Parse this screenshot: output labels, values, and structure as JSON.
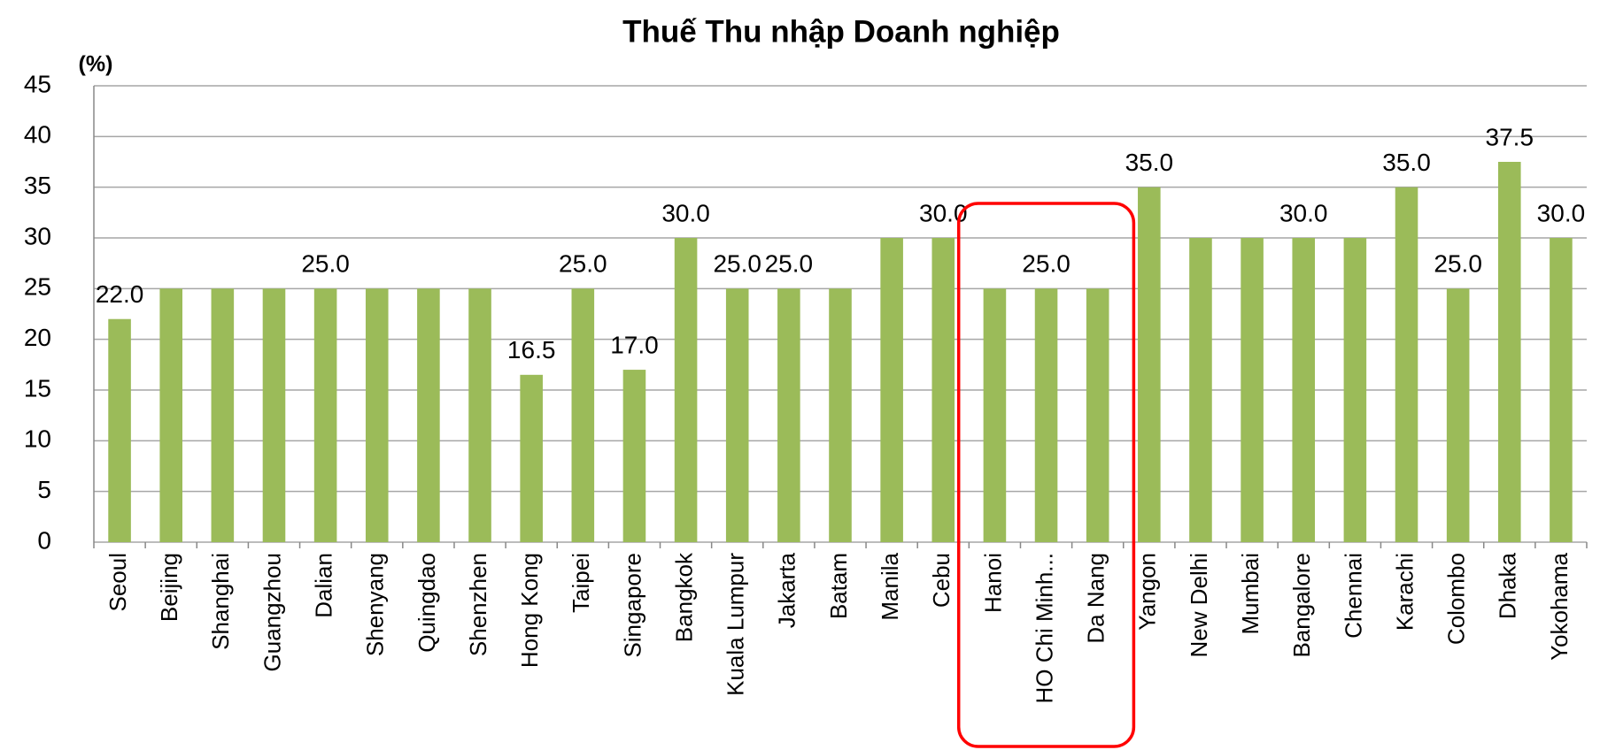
{
  "chart_data": {
    "type": "bar",
    "title": "Thuế Thu nhập Doanh nghiệp",
    "y_label": "(%)",
    "categories": [
      "Seoul",
      "Beijing",
      "Shanghai",
      "Guangzhou",
      "Dalian",
      "Shenyang",
      "Quingdao",
      "Shenzhen",
      "Hong Kong",
      "Taipei",
      "Singapore",
      "Bangkok",
      "Kuala Lumpur",
      "Jakarta",
      "Batam",
      "Manila",
      "Cebu",
      "Hanoi",
      "HO Chi Minh...",
      "Da Nang",
      "Yangon",
      "New Delhi",
      "Mumbai",
      "Bangalore",
      "Chennai",
      "Karachi",
      "Colombo",
      "Dhaka",
      "Yokohama"
    ],
    "values": [
      22,
      25,
      25,
      25,
      25,
      25,
      25,
      25,
      16.5,
      25,
      17,
      30,
      25,
      25,
      25,
      30,
      30,
      25,
      25,
      25,
      35,
      30,
      30,
      30,
      30,
      35,
      25,
      37.5,
      30
    ],
    "value_labels": [
      "22.0",
      null,
      null,
      null,
      "25.0",
      null,
      null,
      null,
      "16.5",
      "25.0",
      "17.0",
      "30.0",
      "25.0",
      "25.0",
      null,
      null,
      "30.0",
      null,
      "25.0",
      null,
      "35.0",
      null,
      null,
      "30.0",
      null,
      "35.0",
      "25.0",
      "37.5",
      "30.0"
    ],
    "color": "#9bbb59",
    "ylim": [
      0,
      45
    ],
    "yticks": [
      0,
      5,
      10,
      15,
      20,
      25,
      30,
      35,
      40,
      45
    ],
    "grid": true
  }
}
